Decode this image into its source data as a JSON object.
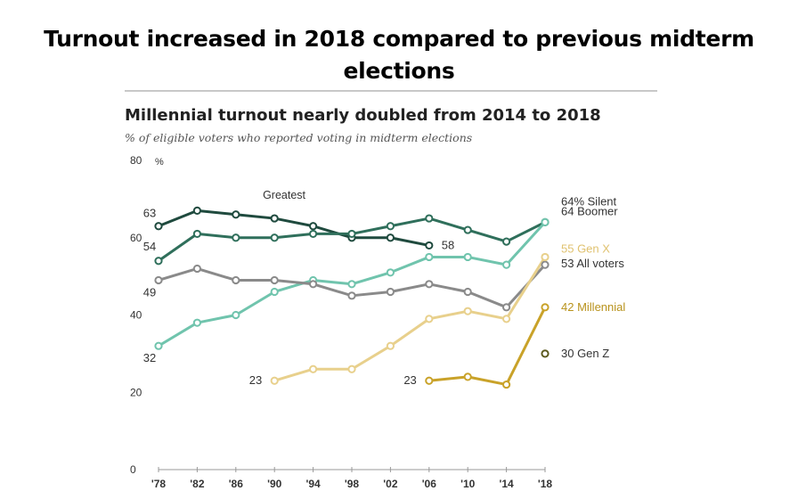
{
  "slide": {
    "title": "Turnout increased in 2018 compared to previous midterm elections"
  },
  "chart_data": {
    "type": "line",
    "title": "Millennial turnout nearly doubled from 2014 to 2018",
    "subtitle": "% of eligible voters who reported voting in midterm elections",
    "ylabel": "%",
    "ylim": [
      0,
      80
    ],
    "y_ticks": [
      "0",
      "20",
      "40",
      "60",
      "80"
    ],
    "x_ticks": [
      "'78",
      "'82",
      "'86",
      "'90",
      "'94",
      "'98",
      "'02",
      "'06",
      "'10",
      "'14",
      "'18"
    ],
    "grid": false,
    "series": [
      {
        "name": "Greatest",
        "color": "#1f4a3e",
        "x": [
          1978,
          1982,
          1986,
          1990,
          1994,
          1998,
          2002,
          2006
        ],
        "values": [
          63,
          67,
          66,
          65,
          63,
          60,
          60,
          58
        ],
        "start_label": "63",
        "end_label": "58"
      },
      {
        "name": "Silent",
        "color": "#2f6f5b",
        "x": [
          1978,
          1982,
          1986,
          1990,
          1994,
          1998,
          2002,
          2006,
          2010,
          2014,
          2018
        ],
        "values": [
          54,
          61,
          60,
          60,
          61,
          61,
          63,
          65,
          62,
          59,
          64
        ],
        "start_label": "54",
        "end_label": "64% Silent"
      },
      {
        "name": "Boomer",
        "color": "#70c4ad",
        "x": [
          1978,
          1982,
          1986,
          1990,
          1994,
          1998,
          2002,
          2006,
          2010,
          2014,
          2018
        ],
        "values": [
          32,
          38,
          40,
          46,
          49,
          48,
          51,
          55,
          55,
          53,
          64
        ],
        "start_label": "32",
        "end_label": "64 Boomer"
      },
      {
        "name": "All voters",
        "color": "#8a8a8a",
        "x": [
          1978,
          1982,
          1986,
          1990,
          1994,
          1998,
          2002,
          2006,
          2010,
          2014,
          2018
        ],
        "values": [
          49,
          52,
          49,
          49,
          48,
          45,
          46,
          48,
          46,
          42,
          53
        ],
        "start_label": "49",
        "end_label": "53 All voters"
      },
      {
        "name": "Gen X",
        "color": "#e8d08c",
        "x": [
          1990,
          1994,
          1998,
          2002,
          2006,
          2010,
          2014,
          2018
        ],
        "values": [
          23,
          26,
          26,
          32,
          39,
          41,
          39,
          55
        ],
        "start_label": "23",
        "end_label": "55 Gen X"
      },
      {
        "name": "Millennial",
        "color": "#c9a229",
        "x": [
          2006,
          2010,
          2014,
          2018
        ],
        "values": [
          23,
          24,
          22,
          42
        ],
        "start_label": "23",
        "end_label": "42 Millennial"
      },
      {
        "name": "Gen Z",
        "color": "#5c5a1e",
        "x": [
          2018
        ],
        "values": [
          30
        ],
        "end_label": "30 Gen Z"
      }
    ],
    "annotations": [
      {
        "text": "Greatest",
        "series": "Greatest"
      }
    ]
  }
}
